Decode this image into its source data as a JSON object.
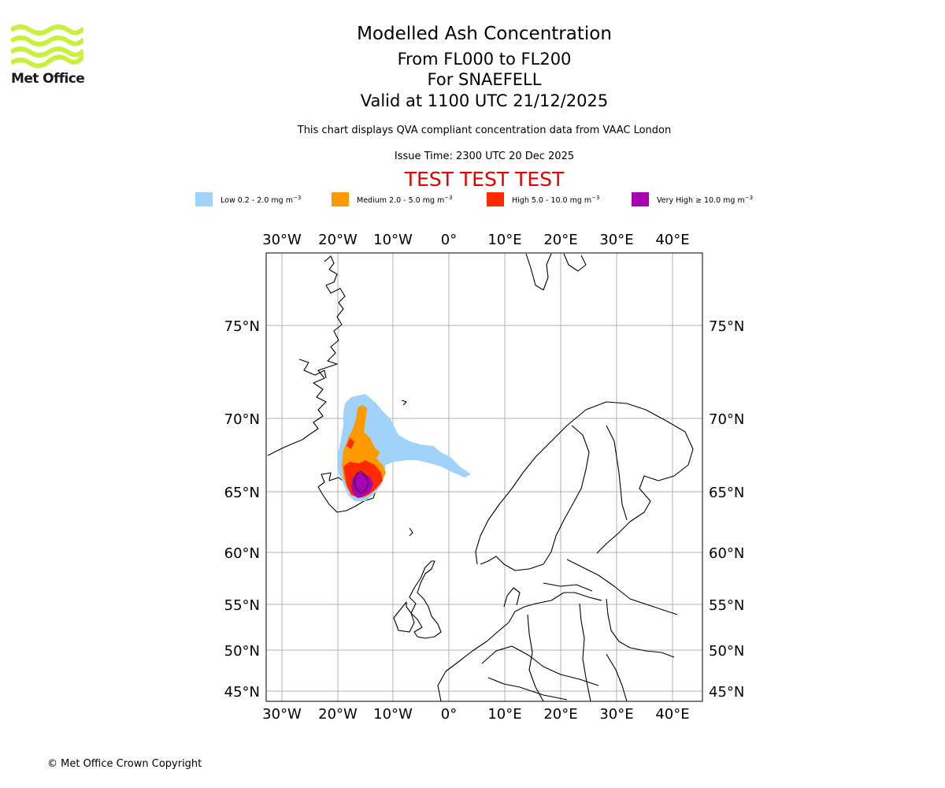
{
  "logo": {
    "name": "Met Office",
    "color": "#c8f03c"
  },
  "title": {
    "main": "Modelled Ash Concentration",
    "levels": "From FL000 to FL200",
    "volcano": "For SNAEFELL",
    "valid": "Valid at 1100 UTC 21/12/2025"
  },
  "note": "This chart displays QVA compliant concentration data from VAAC London",
  "issue_time": "Issue Time: 2300 UTC 20 Dec 2025",
  "test_banner": "TEST TEST TEST",
  "legend": [
    {
      "label": "Low 0.2 - 2.0 mg m",
      "exp": "−3",
      "color": "#a0d2fa"
    },
    {
      "label": "Medium 2.0 - 5.0 mg m",
      "exp": "−3",
      "color": "#ff9900"
    },
    {
      "label": "High 5.0 - 10.0 mg m",
      "exp": "−3",
      "color": "#ff2a00"
    },
    {
      "label": "Very High  ≥  10.0 mg m",
      "exp": "−3",
      "color": "#a800b4"
    }
  ],
  "map": {
    "lon_ticks": [
      "30°W",
      "20°W",
      "10°W",
      "0°",
      "10°E",
      "20°E",
      "30°E",
      "40°E"
    ],
    "lat_ticks": [
      "75°N",
      "70°N",
      "65°N",
      "60°N",
      "55°N",
      "50°N",
      "45°N"
    ]
  },
  "copyright": "© Met Office Crown Copyright"
}
